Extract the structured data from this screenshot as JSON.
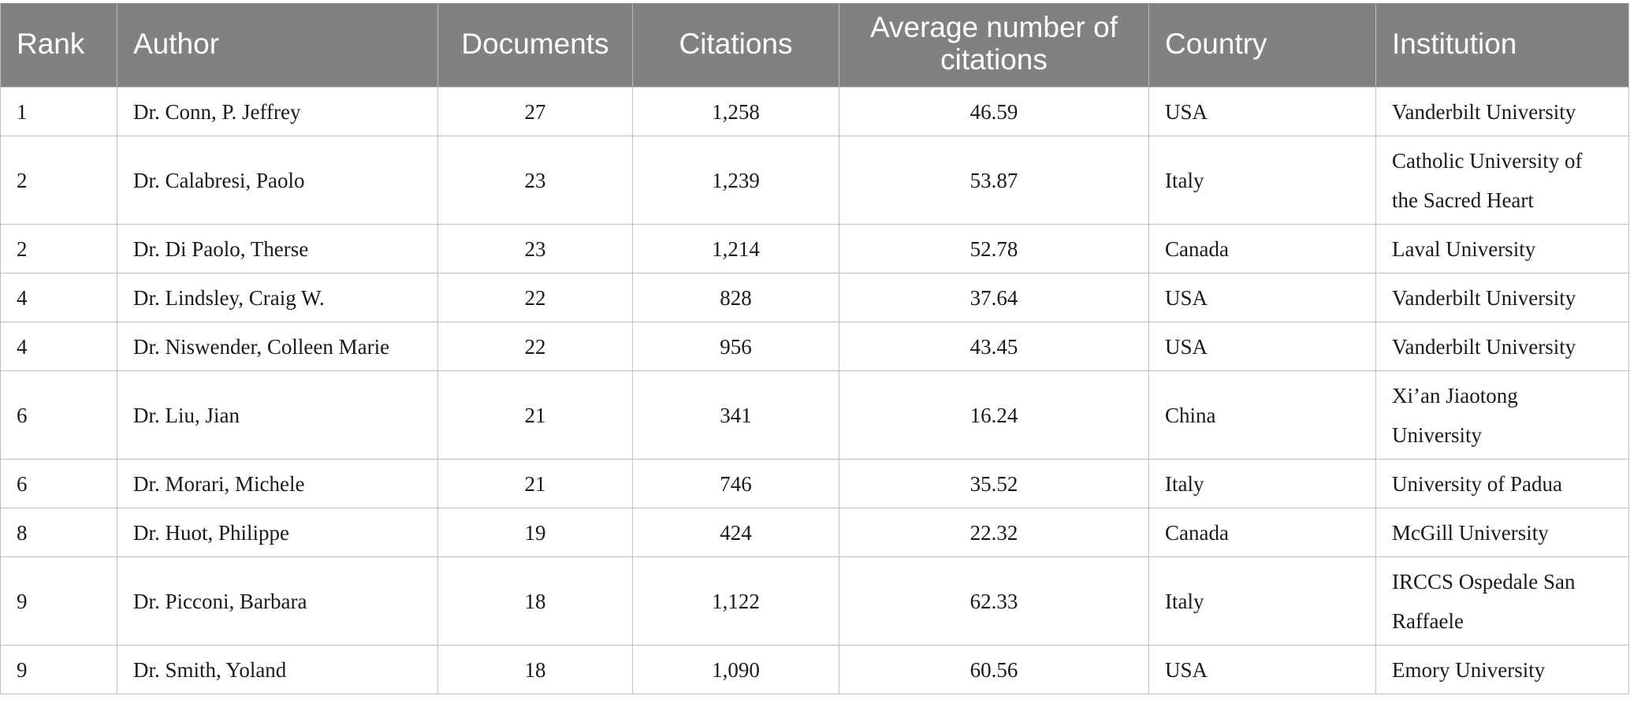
{
  "headers": {
    "rank": "Rank",
    "author": "Author",
    "documents": "Documents",
    "citations": "Citations",
    "average": "Average number of citations",
    "country": "Country",
    "institution": "Institution"
  },
  "rows": [
    {
      "rank": "1",
      "author": "Dr. Conn, P. Jeffrey",
      "documents": "27",
      "citations": "1,258",
      "average": "46.59",
      "country": "USA",
      "institution": "Vanderbilt University"
    },
    {
      "rank": "2",
      "author": "Dr. Calabresi, Paolo",
      "documents": "23",
      "citations": "1,239",
      "average": "53.87",
      "country": "Italy",
      "institution": "Catholic University of the Sacred Heart"
    },
    {
      "rank": "2",
      "author": "Dr. Di Paolo, Therse",
      "documents": "23",
      "citations": "1,214",
      "average": "52.78",
      "country": "Canada",
      "institution": "Laval University"
    },
    {
      "rank": "4",
      "author": "Dr. Lindsley, Craig W.",
      "documents": "22",
      "citations": "828",
      "average": "37.64",
      "country": "USA",
      "institution": "Vanderbilt University"
    },
    {
      "rank": "4",
      "author": "Dr. Niswender, Colleen Marie",
      "documents": "22",
      "citations": "956",
      "average": "43.45",
      "country": "USA",
      "institution": "Vanderbilt University"
    },
    {
      "rank": "6",
      "author": "Dr. Liu, Jian",
      "documents": "21",
      "citations": "341",
      "average": "16.24",
      "country": "China",
      "institution": "Xi’an Jiaotong University"
    },
    {
      "rank": "6",
      "author": "Dr. Morari, Michele",
      "documents": "21",
      "citations": "746",
      "average": "35.52",
      "country": "Italy",
      "institution": "University of Padua"
    },
    {
      "rank": "8",
      "author": "Dr. Huot, Philippe",
      "documents": "19",
      "citations": "424",
      "average": "22.32",
      "country": "Canada",
      "institution": "McGill University"
    },
    {
      "rank": "9",
      "author": "Dr. Picconi, Barbara",
      "documents": "18",
      "citations": "1,122",
      "average": "62.33",
      "country": "Italy",
      "institution": "IRCCS Ospedale San Raffaele"
    },
    {
      "rank": "9",
      "author": "Dr. Smith, Yoland",
      "documents": "18",
      "citations": "1,090",
      "average": "60.56",
      "country": "USA",
      "institution": "Emory University"
    }
  ]
}
